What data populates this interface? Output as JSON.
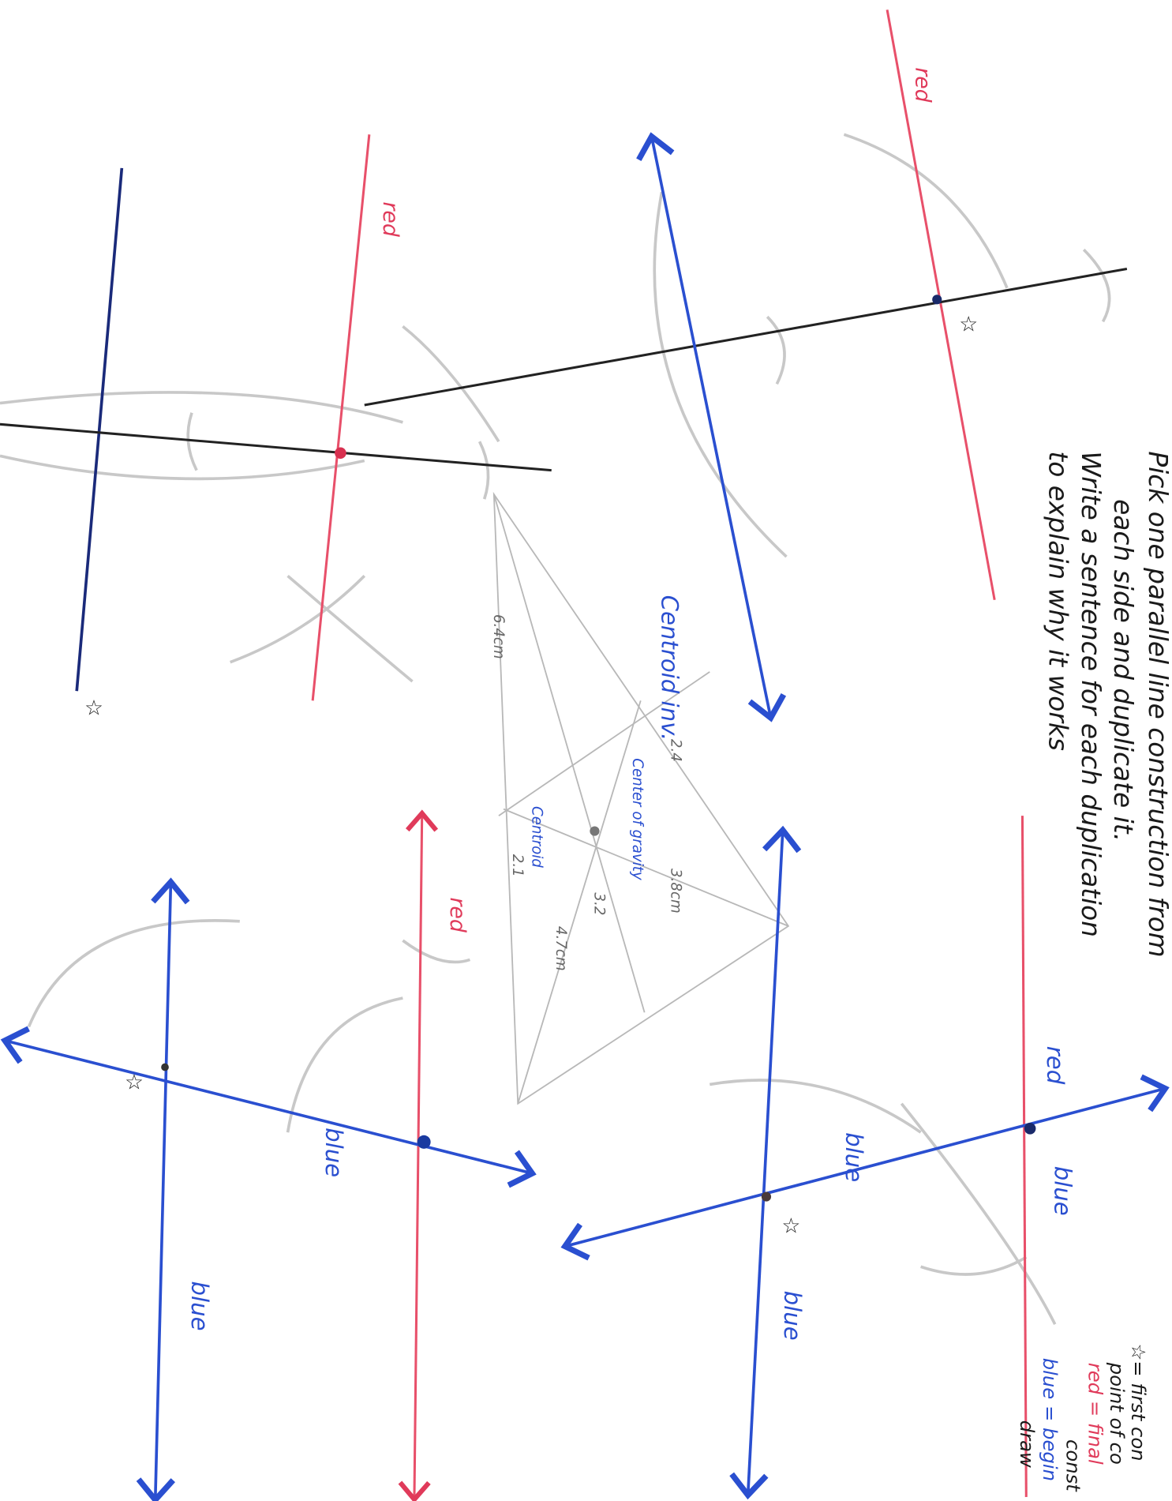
{
  "instructions": [
    "Pick one parallel line construction from",
    "each side and duplicate it.",
    "Write a sentence for each duplication",
    "to explain why it works"
  ],
  "labels": {
    "red_1": "red",
    "red_2": "red",
    "red_3": "red",
    "red_4": "red",
    "blue_1": "blue",
    "blue_2": "blue",
    "blue_3": "blue",
    "blue_4": "blue",
    "blue_5": "blue"
  },
  "triangle": {
    "title": "Centroid inv.",
    "center": "Center of gravity",
    "centroid": "Centroid",
    "measure_1": "6.4cm",
    "measure_2": "2.4",
    "measure_3": "3.8cm",
    "measure_4": "3.2",
    "measure_5": "4.7cm",
    "measure_6": "2.1"
  },
  "legend": [
    "☆= first con",
    "point of co",
    "red = final",
    "const",
    "blue = begin",
    "draw"
  ]
}
